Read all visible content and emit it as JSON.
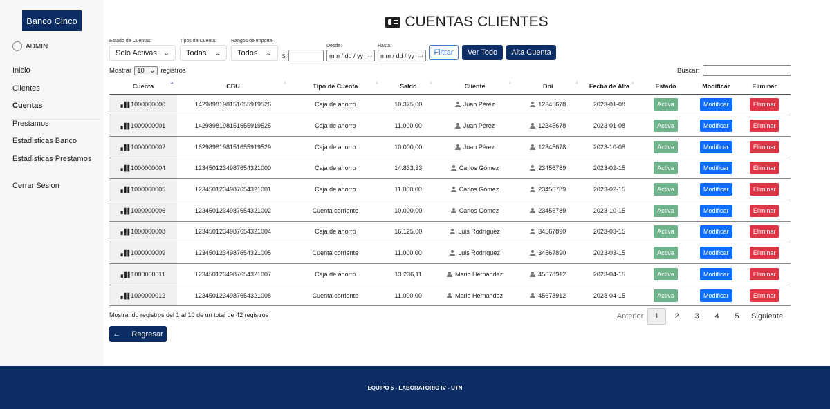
{
  "brand": "Banco Cinco",
  "user": "ADMIN",
  "nav": [
    "Inicio",
    "Clientes",
    "Cuentas",
    "Prestamos",
    "Estadisticas Banco",
    "Estadisticas Prestamos"
  ],
  "nav_active": "Cuentas",
  "logout": "Cerrar Sesion",
  "title": "CUENTAS CLIENTES",
  "filters": {
    "estado_label": "Estado de Cuentas:",
    "estado_value": "Solo Activas",
    "tipo_label": "Tipos de Cuenta:",
    "tipo_value": "Todas",
    "rango_label": "Rangos de Importe:",
    "rango_value": "Todos",
    "monto_prefix": "$:",
    "desde_label": "Desde:",
    "desde_placeholder": "mm / dd / yy",
    "hasta_label": "Hasta:",
    "hasta_placeholder": "mm / dd / yy",
    "filtrar": "Filtrar",
    "ver_todo": "Ver Todo",
    "alta": "Alta Cuenta"
  },
  "length": {
    "pre": "Mostrar",
    "value": "10",
    "post": "registros"
  },
  "search_label": "Buscar:",
  "columns": [
    "Cuenta",
    "CBU",
    "Tipo de Cuenta",
    "Saldo",
    "Cliente",
    "Dni",
    "Fecha de Alta",
    "Estado",
    "Modificar",
    "Eliminar"
  ],
  "rows": [
    [
      "1000000000",
      "1429898198151655919526",
      "Caja de ahorro",
      "10.375,00",
      "Juan Pérez",
      "12345678",
      "2023-01-08"
    ],
    [
      "1000000001",
      "1429898198151655919525",
      "Caja de ahorro",
      "11.000,00",
      "Juan Pérez",
      "12345678",
      "2023-01-08"
    ],
    [
      "1000000002",
      "1629898198151655919529",
      "Caja de ahorro",
      "10.000,00",
      "Juan Pérez",
      "12345678",
      "2023-10-08"
    ],
    [
      "1000000004",
      "1234501234987654321000",
      "Caja de ahorro",
      "14.833,33",
      "Carlos Gómez",
      "23456789",
      "2023-02-15"
    ],
    [
      "1000000005",
      "1234501234987654321001",
      "Caja de ahorro",
      "11.000,00",
      "Carlos Gómez",
      "23456789",
      "2023-02-15"
    ],
    [
      "1000000006",
      "1234501234987654321002",
      "Cuenta corriente",
      "10.000,00",
      "Carlos Gómez",
      "23456789",
      "2023-10-15"
    ],
    [
      "1000000008",
      "1234501234987654321004",
      "Caja de ahorro",
      "16.125,00",
      "Luis Rodríguez",
      "34567890",
      "2023-03-15"
    ],
    [
      "1000000009",
      "1234501234987654321005",
      "Cuenta corriente",
      "11.000,00",
      "Luis Rodríguez",
      "34567890",
      "2023-03-15"
    ],
    [
      "1000000011",
      "1234501234987654321007",
      "Caja de ahorro",
      "13.236,11",
      "Mario Hernández",
      "45678912",
      "2023-04-15"
    ],
    [
      "1000000012",
      "1234501234987654321008",
      "Cuenta corriente",
      "11.000,00",
      "Mario Hernández",
      "45678912",
      "2023-04-15"
    ]
  ],
  "row_actions": {
    "estado": "Activa",
    "modificar": "Modificar",
    "eliminar": "Eliminar"
  },
  "info": "Mostrando registros del 1 al 10 de un total de 42 registros",
  "pagination": {
    "prev": "Anterior",
    "pages": [
      "1",
      "2",
      "3",
      "4",
      "5"
    ],
    "current": "1",
    "next": "Siguiente"
  },
  "back": "Regresar",
  "footer": "EQUIPO 5 - LABORATORIO IV - UTN",
  "colors": {
    "navy": "#0b2d63",
    "activa": "#6fb38d",
    "modificar": "#0d6efd",
    "eliminar": "#dc3545"
  }
}
